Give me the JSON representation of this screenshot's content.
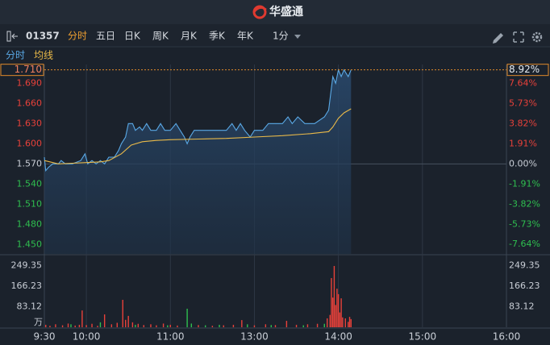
{
  "header": {
    "brand": "华盛通"
  },
  "toolbar": {
    "code": "01357",
    "tabs": [
      "分时",
      "五日",
      "日K",
      "周K",
      "月K",
      "季K",
      "年K"
    ],
    "interval": "1分"
  },
  "chart_data": {
    "type": "line",
    "xlim": [
      0,
      330
    ],
    "xticks": [
      {
        "value": 0,
        "label": "9:30"
      },
      {
        "value": 30,
        "label": "10:00"
      },
      {
        "value": 90,
        "label": "11:00"
      },
      {
        "value": 150,
        "label": "13:00"
      },
      {
        "value": 210,
        "label": "14:00"
      },
      {
        "value": 270,
        "label": "15:00"
      },
      {
        "value": 330,
        "label": "16:00"
      }
    ],
    "ylim": [
      1.436,
      1.718
    ],
    "yticks": [
      {
        "value": 1.69,
        "label": "1.690"
      },
      {
        "value": 1.66,
        "label": "1.660"
      },
      {
        "value": 1.63,
        "label": "1.630"
      },
      {
        "value": 1.6,
        "label": "1.600"
      },
      {
        "value": 1.57,
        "label": "1.570"
      },
      {
        "value": 1.54,
        "label": "1.540"
      },
      {
        "value": 1.51,
        "label": "1.510"
      },
      {
        "value": 1.48,
        "label": "1.480"
      },
      {
        "value": 1.45,
        "label": "1.450"
      }
    ],
    "y2lim": [
      -8.54,
      9.43
    ],
    "y2ticks": [
      {
        "value": 7.64,
        "label": "7.64%"
      },
      {
        "value": 5.73,
        "label": "5.73%"
      },
      {
        "value": 3.82,
        "label": "3.82%"
      },
      {
        "value": 1.91,
        "label": "1.91%"
      },
      {
        "value": 0,
        "label": "0.00%"
      },
      {
        "value": -1.91,
        "label": "-1.91%"
      },
      {
        "value": -3.82,
        "label": "-3.82%"
      },
      {
        "value": -5.73,
        "label": "-5.73%"
      },
      {
        "value": -7.64,
        "label": "-7.64%"
      }
    ],
    "last_price": {
      "value": 1.71,
      "label": "1.710"
    },
    "last_change": {
      "value": 8.92,
      "label": "8.92%"
    },
    "series": [
      {
        "name": "分时",
        "color": "#5aa9e6",
        "x": [
          0,
          1,
          3,
          6,
          10,
          12,
          15,
          20,
          26,
          29,
          31,
          34,
          37,
          40,
          43,
          46,
          50,
          53,
          55,
          58,
          60,
          63,
          65,
          68,
          70,
          73,
          76,
          80,
          83,
          86,
          90,
          94,
          97,
          100,
          102,
          104,
          107,
          112,
          118,
          124,
          130,
          134,
          137,
          140,
          143,
          147,
          150,
          156,
          160,
          165,
          170,
          174,
          177,
          181,
          186,
          193,
          200,
          203,
          206,
          208,
          210,
          212,
          214,
          217,
          219
        ],
        "values": [
          1.58,
          1.56,
          1.565,
          1.57,
          1.57,
          1.575,
          1.57,
          1.57,
          1.575,
          1.585,
          1.57,
          1.575,
          1.57,
          1.575,
          1.57,
          1.58,
          1.58,
          1.59,
          1.6,
          1.61,
          1.63,
          1.63,
          1.62,
          1.625,
          1.62,
          1.63,
          1.62,
          1.62,
          1.63,
          1.62,
          1.62,
          1.63,
          1.62,
          1.61,
          1.6,
          1.61,
          1.62,
          1.62,
          1.62,
          1.62,
          1.62,
          1.63,
          1.62,
          1.63,
          1.62,
          1.61,
          1.62,
          1.62,
          1.63,
          1.63,
          1.63,
          1.64,
          1.63,
          1.64,
          1.63,
          1.63,
          1.64,
          1.65,
          1.7,
          1.69,
          1.71,
          1.7,
          1.71,
          1.7,
          1.71
        ]
      },
      {
        "name": "均线",
        "color": "#e9b949",
        "x": [
          0,
          10,
          20,
          30,
          40,
          46,
          55,
          62,
          70,
          80,
          90,
          110,
          130,
          150,
          170,
          190,
          203,
          206,
          210,
          214,
          219
        ],
        "values": [
          1.575,
          1.57,
          1.571,
          1.572,
          1.573,
          1.575,
          1.585,
          1.598,
          1.603,
          1.605,
          1.606,
          1.607,
          1.608,
          1.61,
          1.612,
          1.615,
          1.618,
          1.625,
          1.638,
          1.646,
          1.652
        ]
      }
    ],
    "volume": {
      "type": "bar",
      "ylim": [
        0,
        287
      ],
      "yticks": [
        249.35,
        166.23,
        83.12
      ],
      "unit": "万",
      "series": [
        {
          "color": "#e8413a",
          "x": [
            1,
            4,
            8,
            13,
            17,
            22,
            25,
            27,
            30,
            34,
            38,
            43,
            48,
            52,
            56,
            58,
            60,
            63,
            67,
            71,
            76,
            80,
            85,
            90,
            95,
            110,
            120,
            128,
            135,
            141,
            150,
            158,
            165,
            173,
            180,
            188,
            195,
            202,
            204,
            205,
            206,
            207,
            208,
            209,
            210,
            211,
            212,
            213,
            215,
            217,
            218,
            219
          ],
          "values": [
            10,
            6,
            12,
            8,
            15,
            7,
            10,
            68,
            9,
            14,
            6,
            52,
            12,
            18,
            111,
            30,
            46,
            20,
            14,
            9,
            12,
            8,
            15,
            10,
            7,
            9,
            6,
            8,
            10,
            29,
            8,
            12,
            9,
            26,
            10,
            12,
            14,
            36,
            50,
            199,
            120,
            248,
            90,
            156,
            134,
            60,
            117,
            40,
            36,
            22,
            42,
            33
          ]
        },
        {
          "color": "#2fbf4f",
          "x": [
            19,
            40,
            65,
            88,
            102,
            105,
            115,
            125,
            145,
            162,
            185,
            200
          ],
          "values": [
            12,
            20,
            10,
            8,
            75,
            15,
            8,
            10,
            12,
            9,
            8,
            14
          ]
        }
      ]
    }
  }
}
